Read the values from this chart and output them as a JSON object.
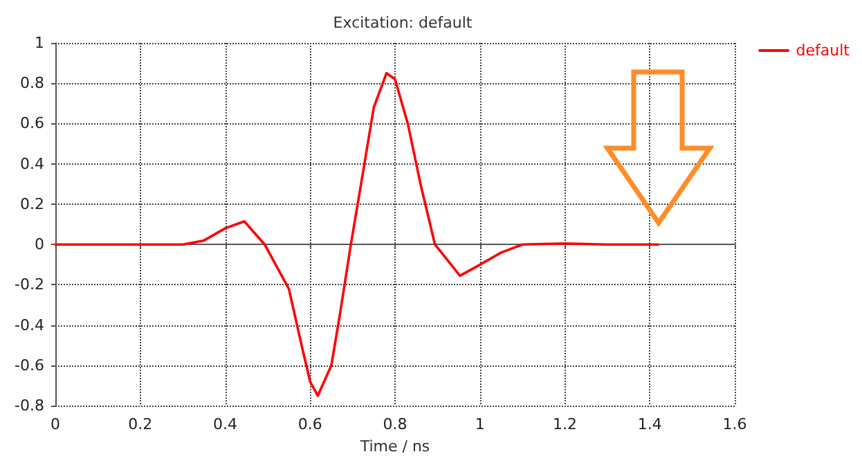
{
  "chart_data": {
    "type": "line",
    "title": "Excitation: default",
    "xlabel": "Time / ns",
    "x": [
      0,
      0.1,
      0.2,
      0.3,
      0.35,
      0.4,
      0.445,
      0.493,
      0.55,
      0.58,
      0.6,
      0.618,
      0.65,
      0.67,
      0.696,
      0.72,
      0.75,
      0.78,
      0.8,
      0.83,
      0.86,
      0.894,
      0.953,
      1.0,
      1.05,
      1.1,
      1.2,
      1.3,
      1.42
    ],
    "series": [
      {
        "name": "default",
        "color": "#ff0000",
        "values": [
          0,
          0,
          0,
          0,
          0.02,
          0.08,
          0.115,
          0,
          -0.22,
          -0.5,
          -0.68,
          -0.75,
          -0.6,
          -0.35,
          0,
          0.3,
          0.68,
          0.85,
          0.82,
          0.6,
          0.3,
          0,
          -0.155,
          -0.1,
          -0.04,
          0,
          0.005,
          0,
          0
        ]
      }
    ],
    "xlim": [
      0,
      1.6
    ],
    "xticks": [
      0,
      0.2,
      0.4,
      0.6,
      0.8,
      1,
      1.2,
      1.4,
      1.6
    ],
    "ylim": [
      -0.8,
      1
    ],
    "yticks": [
      -0.8,
      -0.6,
      -0.4,
      -0.2,
      0,
      0.2,
      0.4,
      0.6,
      0.8,
      1
    ],
    "grid": true,
    "legend": "top right",
    "marker": "none",
    "line_style": "solid"
  }
}
